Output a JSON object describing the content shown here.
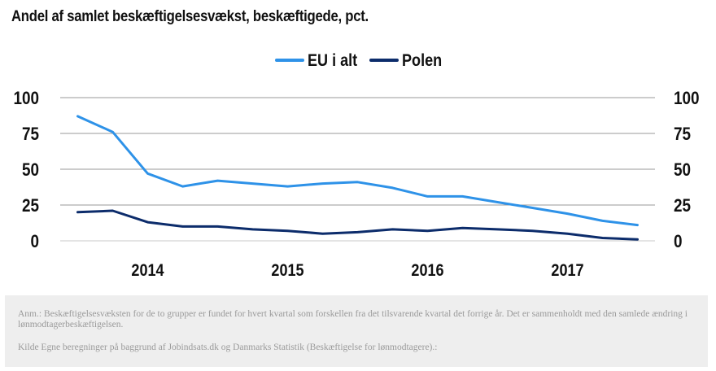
{
  "chart_data": {
    "type": "line",
    "title": "Andel af samlet beskæftigelsesvækst, beskæftigede, pct.",
    "ylim": [
      0,
      100
    ],
    "yticks": [
      0,
      25,
      50,
      75,
      100
    ],
    "xlim": [
      2013.375,
      2017.625
    ],
    "xticks": [
      {
        "label": "2014",
        "x": 2014.0
      },
      {
        "label": "2015",
        "x": 2015.0
      },
      {
        "label": "2016",
        "x": 2016.0
      },
      {
        "label": "2017",
        "x": 2017.0
      }
    ],
    "legend_position": "top-center",
    "grid": true,
    "x": [
      2013.5,
      2013.75,
      2014.0,
      2014.25,
      2014.5,
      2014.75,
      2015.0,
      2015.25,
      2015.5,
      2015.75,
      2016.0,
      2016.25,
      2016.5,
      2016.75,
      2017.0,
      2017.25,
      2017.5
    ],
    "series": [
      {
        "name": "EU i alt",
        "color": "#2e92e8",
        "values": [
          87,
          76,
          47,
          38,
          42,
          40,
          38,
          40,
          41,
          37,
          31,
          31,
          27,
          23,
          19,
          14,
          11
        ]
      },
      {
        "name": "Polen",
        "color": "#0c2c6b",
        "values": [
          20,
          21,
          13,
          10,
          10,
          8,
          7,
          5,
          6,
          8,
          7,
          9,
          8,
          7,
          5,
          2,
          1
        ]
      }
    ]
  },
  "note": {
    "anm": "Anm.: Beskæftigelsesvæksten for de to grupper er fundet for hvert kvartal som forskellen fra det tilsvarende kvartal det forrige år. Det er sammenholdt med den samlede ændring i lønmodtagerbeskæftigelsen.",
    "kilde": "Kilde Egne beregninger på baggrund af Jobindsats.dk og Danmarks Statistik (Beskæftigelse for lønmodtagere).:"
  }
}
